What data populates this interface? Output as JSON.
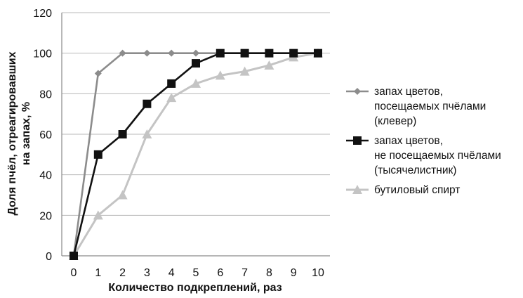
{
  "chart_data": {
    "type": "line",
    "xlabel": "Количество подкреплений, раз",
    "ylabel_lines": [
      "Доля пчёл, отреагировавших",
      "на запах, %"
    ],
    "x": [
      0,
      1,
      2,
      3,
      4,
      5,
      6,
      7,
      8,
      9,
      10
    ],
    "xlim": [
      0,
      10
    ],
    "ylim": [
      0,
      120
    ],
    "yticks": [
      0,
      20,
      40,
      60,
      80,
      100,
      120
    ],
    "grid": "horizontal",
    "legend_position": "right",
    "series": [
      {
        "name_lines": [
          "запах цветов,",
          "посещаемых пчёлами",
          "(клевер)"
        ],
        "marker": "diamond",
        "color": "#8c8c8c",
        "values": [
          0,
          90,
          100,
          100,
          100,
          100,
          100,
          100,
          100,
          100,
          100
        ]
      },
      {
        "name_lines": [
          "запах цветов,",
          "не посещаемых пчёлами",
          "(тысячелистник)"
        ],
        "marker": "square",
        "color": "#111111",
        "values": [
          0,
          50,
          60,
          75,
          85,
          95,
          100,
          100,
          100,
          100,
          100
        ]
      },
      {
        "name_lines": [
          "бутиловый спирт"
        ],
        "marker": "triangle",
        "color": "#c4c4c4",
        "values": [
          0,
          20,
          30,
          60,
          78,
          85,
          89,
          91,
          94,
          98,
          100
        ]
      }
    ]
  }
}
